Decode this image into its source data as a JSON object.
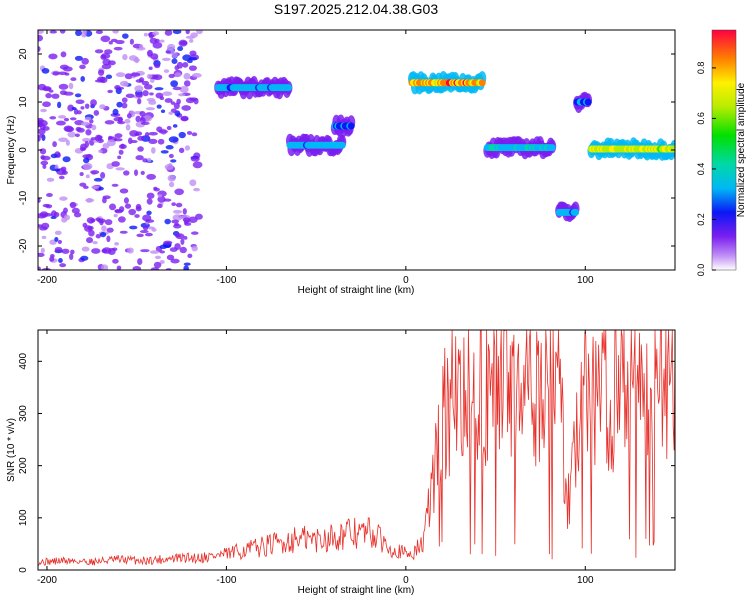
{
  "title": "S197.2025.212.04.38.G03",
  "colors": {
    "snr_line": "#e8302a",
    "axis": "#000000"
  },
  "chart_data": [
    {
      "type": "heatmap",
      "xlabel": "Height of straight line (km)",
      "ylabel": "Frequency (Hz)",
      "xlim": [
        -205,
        150
      ],
      "ylim": [
        -25,
        25
      ],
      "xticks": [
        -200,
        -100,
        0,
        100
      ],
      "yticks": [
        -20,
        -10,
        0,
        10,
        20
      ],
      "colorbar": {
        "label": "Normalized spectral amplitude",
        "range": [
          0,
          0.95
        ],
        "ticks": [
          0.0,
          0.2,
          0.4,
          0.6,
          0.8
        ],
        "tick_labels": [
          "0.0",
          "0.2",
          "0.4",
          "0.6",
          "0.8"
        ],
        "colormap": "rainbow"
      },
      "features": [
        {
          "x_range": [
            -205,
            -115
          ],
          "f_range": [
            -25,
            25
          ],
          "amplitude": 0.1,
          "kind": "scattered noise"
        },
        {
          "x_range": [
            -105,
            -65
          ],
          "freq": 13,
          "amplitude": 0.3
        },
        {
          "x_range": [
            -65,
            -35
          ],
          "freq": 1,
          "amplitude": 0.3
        },
        {
          "x_range": [
            -40,
            -30
          ],
          "freq": 5,
          "amplitude": 0.25
        },
        {
          "x_range": [
            3,
            43
          ],
          "freq": 14,
          "amplitude": 0.85
        },
        {
          "x_range": [
            45,
            82
          ],
          "freq": 0.5,
          "amplitude": 0.35
        },
        {
          "x_range": [
            85,
            95
          ],
          "freq": -13,
          "amplitude": 0.3
        },
        {
          "x_range": [
            95,
            102
          ],
          "freq": 10,
          "amplitude": 0.25
        },
        {
          "x_range": [
            103,
            150
          ],
          "freq": 0.2,
          "amplitude": 0.7
        }
      ]
    },
    {
      "type": "line",
      "xlabel": "Height of straight line (km)",
      "ylabel": "SNR (10 * v/v)",
      "xlim": [
        -205,
        150
      ],
      "ylim": [
        0,
        460
      ],
      "xticks": [
        -200,
        -100,
        0,
        100
      ],
      "yticks": [
        0,
        100,
        200,
        300,
        400
      ],
      "series": [
        {
          "x": [
            -205,
            -190,
            -175,
            -160,
            -145,
            -130,
            -115,
            -100,
            -90,
            -80,
            -70,
            -60,
            -50,
            -40,
            -30,
            -20,
            -10,
            0,
            5,
            10,
            15,
            20,
            25,
            30,
            35,
            40,
            45,
            50,
            55,
            60,
            65,
            70,
            75,
            80,
            85,
            90,
            95,
            100,
            105,
            110,
            115,
            120,
            125,
            130,
            135,
            140,
            145,
            150
          ],
          "y": [
            15,
            18,
            16,
            20,
            18,
            22,
            24,
            30,
            38,
            45,
            52,
            60,
            58,
            65,
            70,
            72,
            48,
            30,
            35,
            55,
            170,
            280,
            330,
            320,
            350,
            360,
            345,
            355,
            370,
            330,
            360,
            350,
            345,
            365,
            355,
            120,
            260,
            360,
            350,
            340,
            330,
            360,
            355,
            345,
            350,
            365,
            370,
            380
          ]
        }
      ]
    }
  ]
}
